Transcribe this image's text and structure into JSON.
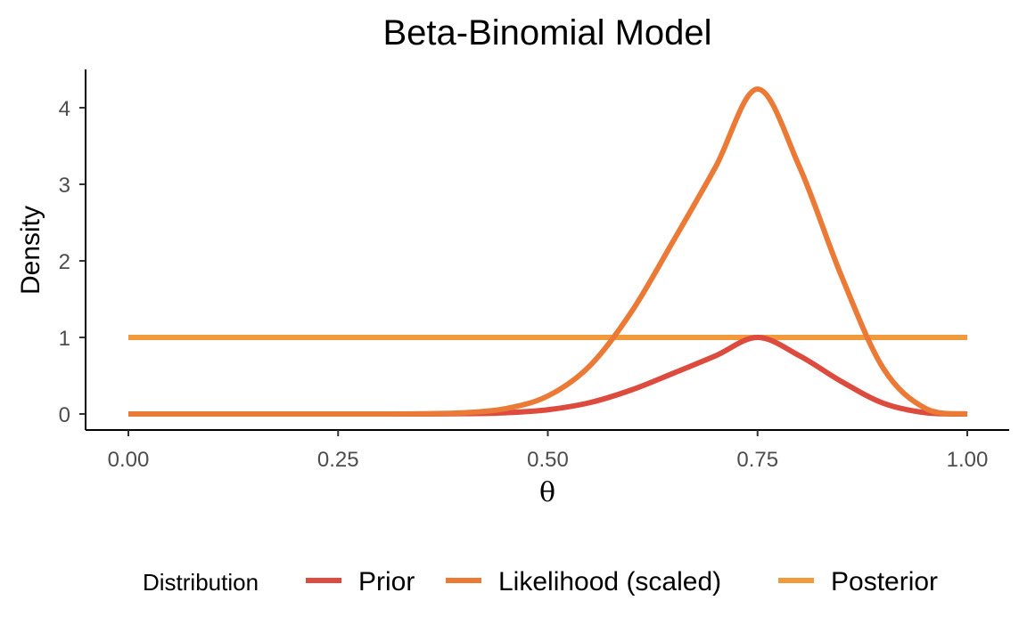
{
  "chart_data": {
    "type": "line",
    "title": "Beta-Binomial Model",
    "xlabel": "θ",
    "ylabel": "Density",
    "xlim": [
      0,
      1
    ],
    "ylim": [
      -0.2,
      4.45
    ],
    "x_ticks": [
      {
        "value": 0.0,
        "label": "0.00"
      },
      {
        "value": 0.25,
        "label": "0.25"
      },
      {
        "value": 0.5,
        "label": "0.50"
      },
      {
        "value": 0.75,
        "label": "0.75"
      },
      {
        "value": 1.0,
        "label": "1.00"
      }
    ],
    "y_ticks": [
      {
        "value": 0,
        "label": "0"
      },
      {
        "value": 1,
        "label": "1"
      },
      {
        "value": 2,
        "label": "2"
      },
      {
        "value": 3,
        "label": "3"
      },
      {
        "value": 4,
        "label": "4"
      }
    ],
    "grid": false,
    "legend": {
      "title": "Distribution",
      "position": "bottom"
    },
    "x": [
      0.0,
      0.05,
      0.1,
      0.15,
      0.2,
      0.25,
      0.3,
      0.35,
      0.4,
      0.45,
      0.5,
      0.55,
      0.6,
      0.65,
      0.7,
      0.75,
      0.8,
      0.85,
      0.9,
      0.95,
      1.0
    ],
    "series": [
      {
        "name": "Prior",
        "color": "#dd4b3e",
        "values": [
          0,
          0,
          0,
          0,
          0,
          0,
          0.0001,
          0.0007,
          0.0039,
          0.0166,
          0.0555,
          0.1481,
          0.3155,
          0.5342,
          0.7603,
          1.0,
          0.7603,
          0.4246,
          0.14,
          0.0175,
          0
        ]
      },
      {
        "name": "Likelihood (scaled)",
        "color": "#ea7a35",
        "values": [
          0,
          0,
          0,
          0,
          0,
          0,
          0.0004,
          0.0028,
          0.0163,
          0.0706,
          0.2355,
          0.6284,
          1.339,
          2.2672,
          3.2267,
          4.244,
          3.2267,
          1.802,
          0.5942,
          0.0743,
          0
        ]
      },
      {
        "name": "Posterior",
        "color": "#f19a3c",
        "values": [
          1,
          1,
          1,
          1,
          1,
          1,
          1,
          1,
          1,
          1,
          1,
          1,
          1,
          1,
          1,
          1,
          1,
          1,
          1,
          1,
          1
        ]
      }
    ]
  }
}
